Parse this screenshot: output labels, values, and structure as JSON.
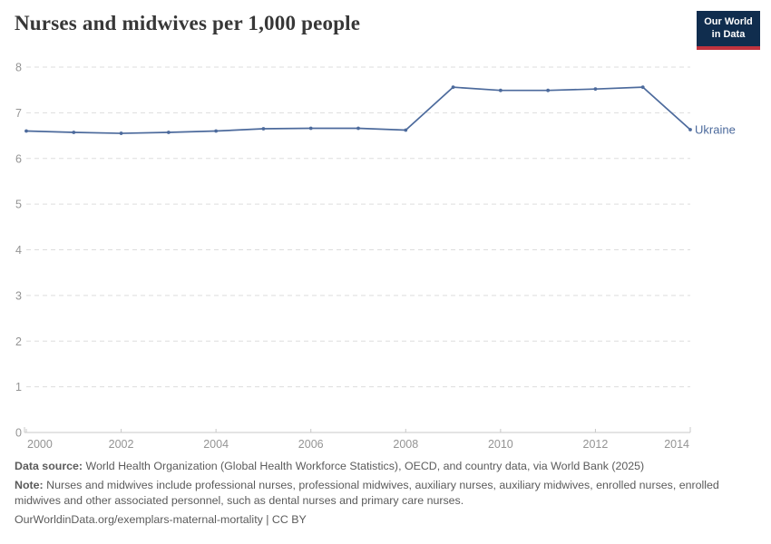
{
  "header": {
    "title": "Nurses and midwives per 1,000 people",
    "logo": {
      "line1": "Our World",
      "line2": "in Data"
    }
  },
  "chart_data": {
    "type": "line",
    "title": "Nurses and midwives per 1,000 people",
    "x": [
      2000,
      2001,
      2002,
      2003,
      2004,
      2005,
      2006,
      2007,
      2008,
      2009,
      2010,
      2011,
      2012,
      2013,
      2014
    ],
    "series": [
      {
        "name": "Ukraine",
        "color": "#4C6A9C",
        "values": [
          6.6,
          6.57,
          6.55,
          6.57,
          6.6,
          6.65,
          6.66,
          6.66,
          6.62,
          7.56,
          7.49,
          7.49,
          7.52,
          7.56,
          6.63
        ]
      }
    ],
    "xlim": [
      2000,
      2014
    ],
    "ylim": [
      0,
      8
    ],
    "xticks": [
      2000,
      2002,
      2004,
      2006,
      2008,
      2010,
      2012,
      2014
    ],
    "yticks": [
      0,
      1,
      2,
      3,
      4,
      5,
      6,
      7,
      8
    ],
    "grid": "horizontal-dashed",
    "legend": "line-end-label"
  },
  "footer": {
    "datasource_label": "Data source:",
    "datasource_text": "World Health Organization (Global Health Workforce Statistics), OECD, and country data, via World Bank (2025)",
    "note_label": "Note:",
    "note_text": "Nurses and midwives include professional nurses, professional midwives, auxiliary nurses, auxiliary midwives, enrolled nurses, enrolled midwives and other associated personnel, such as dental nurses and primary care nurses.",
    "license": "OurWorldinData.org/exemplars-maternal-mortality | CC BY"
  },
  "colors": {
    "line": "#4C6A9C",
    "gridline": "#dddddd",
    "axis": "#c8c8c8",
    "tick_text": "#949494",
    "logo_bg": "#102d4e",
    "logo_stripe": "#c0333e"
  }
}
